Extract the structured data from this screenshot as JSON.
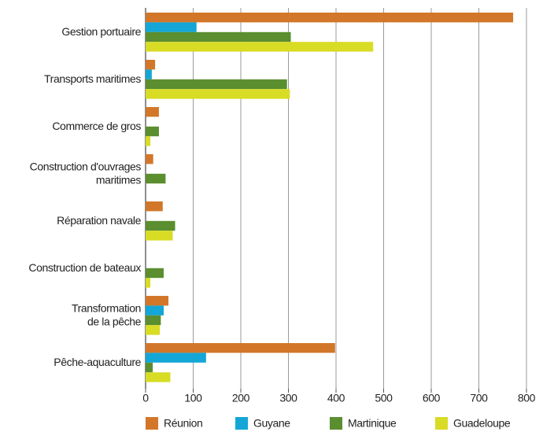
{
  "chart_data": {
    "type": "hbar",
    "categories": [
      "Gestion portuaire",
      "Transports maritimes",
      "Commerce de gros",
      "Construction d'ouvrages\nmaritimes",
      "Réparation navale",
      "Construction de bateaux",
      "Transformation\nde la pêche",
      "Pêche-aquaculture"
    ],
    "series": [
      {
        "name": "Réunion",
        "color": "#d2772a",
        "values": [
          772,
          20,
          28,
          16,
          36,
          0,
          48,
          398
        ]
      },
      {
        "name": "Guyane",
        "color": "#13a6d6",
        "values": [
          107,
          13,
          0,
          0,
          0,
          0,
          38,
          127
        ]
      },
      {
        "name": "Martinique",
        "color": "#5a8e2f",
        "values": [
          305,
          297,
          28,
          42,
          62,
          38,
          32,
          15
        ]
      },
      {
        "name": "Guadeloupe",
        "color": "#d8dc25",
        "values": [
          478,
          303,
          10,
          0,
          57,
          10,
          30,
          52
        ]
      }
    ],
    "xlim": [
      0,
      800
    ],
    "xticks": [
      0,
      100,
      200,
      300,
      400,
      500,
      600,
      700,
      800
    ],
    "grid": true
  }
}
